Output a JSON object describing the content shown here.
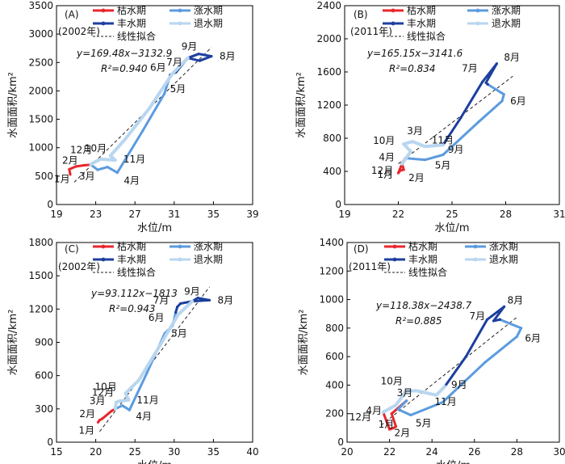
{
  "legend": {
    "dry": "枯水期",
    "rising": "涨水期",
    "wet": "丰水期",
    "receding": "退水期",
    "fit": "线性拟合"
  },
  "colors": {
    "dry": "#e8262d",
    "rising": "#5b9bdf",
    "wet": "#1d3f9e",
    "receding": "#b8d6f0",
    "fit": "#222222"
  },
  "chart_data": [
    {
      "type": "line",
      "panel": "(A)",
      "year": "(2002年)",
      "xlabel": "水位/m",
      "ylabel": "水面面积/km²",
      "xlim": [
        19,
        39
      ],
      "ylim": [
        0,
        3500
      ],
      "xticks": [
        19,
        23,
        27,
        31,
        35,
        39
      ],
      "yticks": [
        0,
        500,
        1000,
        1500,
        2000,
        2500,
        3000,
        3500
      ],
      "equation": "y=169.48x−3132.9",
      "r2": "R²=0.940",
      "fit": {
        "slope": 169.48,
        "intercept": -3132.9,
        "x_range": [
          20.8,
          34.8
        ]
      },
      "months": [
        {
          "label": "1月",
          "x": 20.4,
          "y": 530
        },
        {
          "label": "2月",
          "x": 21.8,
          "y": 690
        },
        {
          "label": "3月",
          "x": 23.2,
          "y": 610
        },
        {
          "label": "4月",
          "x": 25.2,
          "y": 560
        },
        {
          "label": "5月",
          "x": 30.0,
          "y": 1950
        },
        {
          "label": "6月",
          "x": 30.6,
          "y": 2280
        },
        {
          "label": "7月",
          "x": 31.2,
          "y": 2330
        },
        {
          "label": "8月",
          "x": 34.8,
          "y": 2610
        },
        {
          "label": "9月",
          "x": 32.4,
          "y": 2580
        },
        {
          "label": "10月",
          "x": 24.5,
          "y": 860
        },
        {
          "label": "11月",
          "x": 25.0,
          "y": 780
        },
        {
          "label": "12月",
          "x": 22.7,
          "y": 730
        }
      ],
      "series": [
        {
          "name": "枯水期",
          "period": "dry",
          "points": [
            [
              20.4,
              530
            ],
            [
              20.3,
              620
            ],
            [
              21.0,
              670
            ],
            [
              21.8,
              690
            ],
            [
              22.5,
              700
            ]
          ]
        },
        {
          "name": "涨水期",
          "period": "rising",
          "points": [
            [
              22.5,
              700
            ],
            [
              23.2,
              610
            ],
            [
              24.2,
              660
            ],
            [
              25.2,
              560
            ],
            [
              27.8,
              1300
            ],
            [
              30.0,
              1950
            ],
            [
              30.6,
              2280
            ]
          ]
        },
        {
          "name": "丰水期",
          "period": "wet",
          "points": [
            [
              30.6,
              2280
            ],
            [
              31.2,
              2330
            ],
            [
              32.4,
              2580
            ],
            [
              33.5,
              2650
            ],
            [
              34.8,
              2610
            ],
            [
              33.6,
              2530
            ],
            [
              32.4,
              2580
            ]
          ]
        },
        {
          "name": "退水期",
          "period": "receding",
          "points": [
            [
              32.4,
              2580
            ],
            [
              30.8,
              2300
            ],
            [
              28.5,
              1700
            ],
            [
              26.0,
              1150
            ],
            [
              24.5,
              860
            ],
            [
              25.0,
              780
            ],
            [
              23.5,
              800
            ],
            [
              22.7,
              730
            ],
            [
              22.5,
              700
            ]
          ]
        }
      ]
    },
    {
      "type": "line",
      "panel": "(B)",
      "year": "(2011年)",
      "xlabel": "水位/m",
      "ylabel": "水面面积/km²",
      "xlim": [
        19,
        31
      ],
      "ylim": [
        0,
        2400
      ],
      "xticks": [
        19,
        22,
        25,
        28,
        31
      ],
      "yticks": [
        0,
        400,
        800,
        1200,
        1600,
        2000,
        2400
      ],
      "equation": "y=165.15x−3141.6",
      "r2": "R²=0.834",
      "fit": {
        "slope": 165.15,
        "intercept": -3141.6,
        "x_range": [
          22.0,
          28.4
        ]
      },
      "months": [
        {
          "label": "1月",
          "x": 22.0,
          "y": 380
        },
        {
          "label": "2月",
          "x": 22.3,
          "y": 420
        },
        {
          "label": "3月",
          "x": 22.8,
          "y": 760
        },
        {
          "label": "4月",
          "x": 22.4,
          "y": 560
        },
        {
          "label": "5月",
          "x": 23.5,
          "y": 540
        },
        {
          "label": "6月",
          "x": 27.8,
          "y": 1250
        },
        {
          "label": "7月",
          "x": 26.9,
          "y": 1470
        },
        {
          "label": "8月",
          "x": 27.5,
          "y": 1700
        },
        {
          "label": "9月",
          "x": 24.5,
          "y": 720
        },
        {
          "label": "10月",
          "x": 22.3,
          "y": 730
        },
        {
          "label": "11月",
          "x": 23.5,
          "y": 700
        },
        {
          "label": "12月",
          "x": 22.2,
          "y": 490
        }
      ],
      "series": [
        {
          "name": "枯水期",
          "period": "dry",
          "points": [
            [
              22.2,
              490
            ],
            [
              22.0,
              380
            ],
            [
              22.1,
              410
            ],
            [
              22.3,
              420
            ],
            [
              22.2,
              500
            ],
            [
              22.4,
              560
            ]
          ]
        },
        {
          "name": "涨水期",
          "period": "rising",
          "points": [
            [
              22.4,
              560
            ],
            [
              23.5,
              540
            ],
            [
              24.5,
              600
            ],
            [
              26.5,
              1000
            ],
            [
              27.8,
              1250
            ],
            [
              27.9,
              1330
            ],
            [
              27.0,
              1450
            ]
          ]
        },
        {
          "name": "丰水期",
          "period": "wet",
          "points": [
            [
              27.0,
              1450
            ],
            [
              26.9,
              1470
            ],
            [
              27.5,
              1700
            ],
            [
              26.7,
              1480
            ],
            [
              25.5,
              1050
            ],
            [
              24.5,
              720
            ]
          ]
        },
        {
          "name": "退水期",
          "period": "receding",
          "points": [
            [
              24.5,
              720
            ],
            [
              23.5,
              700
            ],
            [
              22.8,
              760
            ],
            [
              22.3,
              730
            ],
            [
              22.7,
              640
            ],
            [
              22.2,
              490
            ]
          ]
        }
      ]
    },
    {
      "type": "line",
      "panel": "(C)",
      "year": "(2002年)",
      "xlabel": "水位/m",
      "ylabel": "水面面积/km²",
      "xlim": [
        15,
        40
      ],
      "ylim": [
        0,
        1800
      ],
      "xticks": [
        15,
        20,
        25,
        30,
        35,
        40
      ],
      "yticks": [
        0,
        300,
        600,
        900,
        1200,
        1500,
        1800
      ],
      "equation": "y=93.112x−1813",
      "r2": "R²=0.943",
      "fit": {
        "slope": 93.112,
        "intercept": -1813,
        "x_range": [
          20.5,
          34.5
        ]
      },
      "months": [
        {
          "label": "1月",
          "x": 20.3,
          "y": 180
        },
        {
          "label": "2月",
          "x": 20.8,
          "y": 210
        },
        {
          "label": "3月",
          "x": 22.5,
          "y": 300
        },
        {
          "label": "4月",
          "x": 24.3,
          "y": 290
        },
        {
          "label": "5月",
          "x": 28.8,
          "y": 980
        },
        {
          "label": "6月",
          "x": 29.8,
          "y": 1050
        },
        {
          "label": "7月",
          "x": 30.4,
          "y": 1220
        },
        {
          "label": "8月",
          "x": 34.5,
          "y": 1280
        },
        {
          "label": "9月",
          "x": 32.3,
          "y": 1270
        },
        {
          "label": "10月",
          "x": 23.8,
          "y": 440
        },
        {
          "label": "11月",
          "x": 24.2,
          "y": 380
        },
        {
          "label": "12月",
          "x": 22.6,
          "y": 360
        }
      ],
      "series": [
        {
          "name": "枯水期",
          "period": "dry",
          "points": [
            [
              20.3,
              180
            ],
            [
              20.5,
              200
            ],
            [
              20.8,
              210
            ],
            [
              22.0,
              280
            ],
            [
              22.5,
              300
            ]
          ]
        },
        {
          "name": "涨水期",
          "period": "rising",
          "points": [
            [
              22.5,
              300
            ],
            [
              23.4,
              330
            ],
            [
              24.3,
              290
            ],
            [
              26.5,
              620
            ],
            [
              28.8,
              980
            ],
            [
              29.8,
              1050
            ],
            [
              30.2,
              1170
            ]
          ]
        },
        {
          "name": "丰水期",
          "period": "wet",
          "points": [
            [
              30.2,
              1170
            ],
            [
              30.4,
              1220
            ],
            [
              30.8,
              1250
            ],
            [
              32.3,
              1270
            ],
            [
              34.5,
              1280
            ],
            [
              33.0,
              1300
            ],
            [
              32.3,
              1270
            ]
          ]
        },
        {
          "name": "退水期",
          "period": "receding",
          "points": [
            [
              32.3,
              1270
            ],
            [
              30.5,
              1150
            ],
            [
              28.0,
              850
            ],
            [
              25.5,
              560
            ],
            [
              23.8,
              440
            ],
            [
              24.2,
              380
            ],
            [
              23.0,
              370
            ],
            [
              22.6,
              360
            ],
            [
              22.5,
              300
            ]
          ]
        }
      ]
    },
    {
      "type": "line",
      "panel": "(D)",
      "year": "(2011年)",
      "xlabel": "水位/m",
      "ylabel": "水面面积/km²",
      "xlim": [
        20,
        30
      ],
      "ylim": [
        0,
        1400
      ],
      "xticks": [
        20,
        22,
        24,
        26,
        28,
        30
      ],
      "yticks": [
        0,
        200,
        400,
        600,
        800,
        1000,
        1200,
        1400
      ],
      "equation": "y=118.38x−2438.7",
      "r2": "R²=0.885",
      "fit": {
        "slope": 118.38,
        "intercept": -2438.7,
        "x_range": [
          21.6,
          28.0
        ]
      },
      "months": [
        {
          "label": "1月",
          "x": 22.0,
          "y": 90
        },
        {
          "label": "2月",
          "x": 22.3,
          "y": 110
        },
        {
          "label": "3月",
          "x": 22.8,
          "y": 290
        },
        {
          "label": "4月",
          "x": 21.8,
          "y": 220
        },
        {
          "label": "5月",
          "x": 23.0,
          "y": 190
        },
        {
          "label": "6月",
          "x": 28.0,
          "y": 740
        },
        {
          "label": "7月",
          "x": 26.9,
          "y": 850
        },
        {
          "label": "8月",
          "x": 27.4,
          "y": 950
        },
        {
          "label": "9月",
          "x": 24.6,
          "y": 390
        },
        {
          "label": "10月",
          "x": 22.8,
          "y": 360
        },
        {
          "label": "11月",
          "x": 24.2,
          "y": 330
        },
        {
          "label": "12月",
          "x": 21.7,
          "y": 210
        }
      ],
      "series": [
        {
          "name": "枯水期",
          "period": "dry",
          "points": [
            [
              21.7,
              210
            ],
            [
              22.0,
              90
            ],
            [
              22.2,
              100
            ],
            [
              22.3,
              110
            ],
            [
              22.1,
              200
            ],
            [
              22.8,
              290
            ]
          ]
        },
        {
          "name": "涨水期",
          "period": "rising",
          "points": [
            [
              22.8,
              290
            ],
            [
              22.4,
              230
            ],
            [
              23.0,
              190
            ],
            [
              24.5,
              280
            ],
            [
              26.5,
              560
            ],
            [
              28.0,
              740
            ],
            [
              28.2,
              800
            ],
            [
              27.2,
              860
            ]
          ]
        },
        {
          "name": "丰水期",
          "period": "wet",
          "points": [
            [
              27.2,
              860
            ],
            [
              26.9,
              850
            ],
            [
              27.4,
              950
            ],
            [
              26.6,
              860
            ],
            [
              25.6,
              600
            ],
            [
              24.6,
              390
            ]
          ]
        },
        {
          "name": "退水期",
          "period": "receding",
          "points": [
            [
              24.6,
              390
            ],
            [
              24.2,
              330
            ],
            [
              23.3,
              360
            ],
            [
              22.8,
              360
            ],
            [
              22.3,
              260
            ],
            [
              21.7,
              210
            ]
          ]
        }
      ]
    }
  ]
}
